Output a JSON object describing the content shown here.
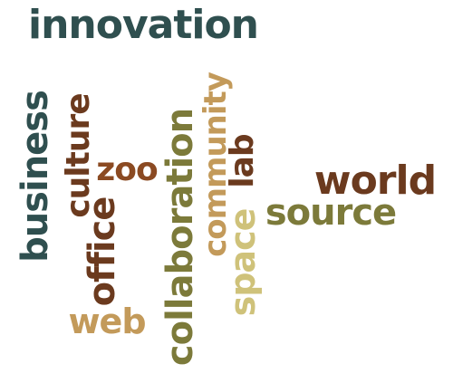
{
  "colors": {
    "dark_slate": "#2f4f4f",
    "olive": "#7c7a3a",
    "tan": "#c39a5a",
    "rust": "#8b4a22",
    "sand": "#cfc27a",
    "brown": "#6b3a1e"
  },
  "words": {
    "innovation": "innovation",
    "business": "business",
    "culture": "culture",
    "zoo": "zoo",
    "office": "office",
    "web": "web",
    "collaboration": "collaboration",
    "community": "community",
    "lab": "lab",
    "space": "space",
    "world": "world",
    "source": "source"
  }
}
